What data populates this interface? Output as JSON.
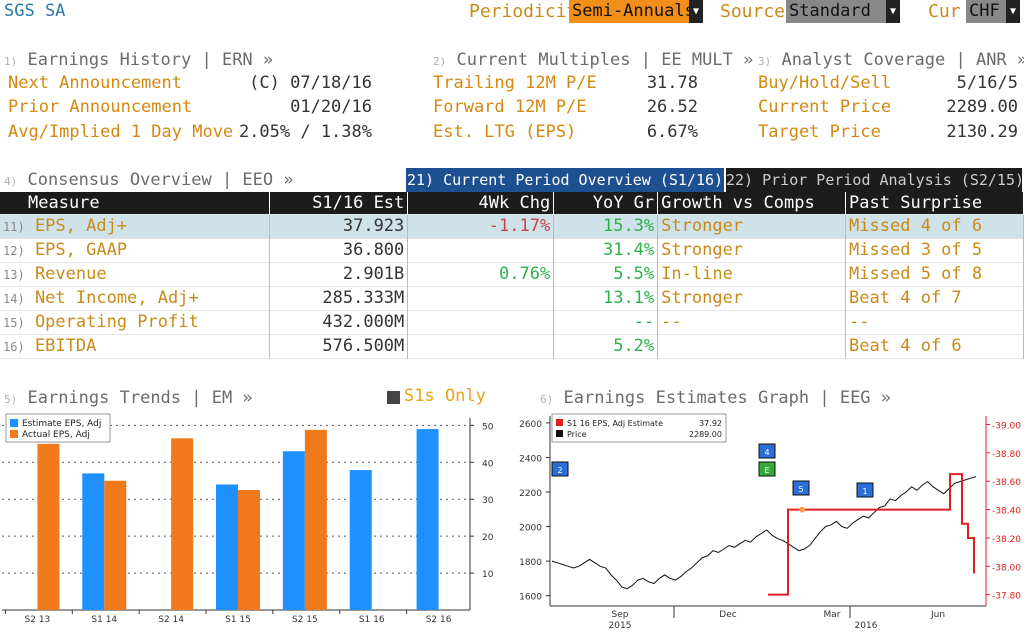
{
  "app": {
    "title": "SGS SA"
  },
  "toolbar": {
    "periodicity_label": "Periodicity",
    "periodicity_value": "Semi-Annuals",
    "source_label": "Source",
    "source_value": "Standard",
    "currency_label": "Cur",
    "currency_value": "CHF"
  },
  "sections": {
    "ern": {
      "num": "1)",
      "title": "Earnings History | ERN »",
      "rows": [
        {
          "label": "Next Announcement",
          "value": "(C)  07/18/16"
        },
        {
          "label": "Prior Announcement",
          "value": "01/20/16"
        },
        {
          "label": "Avg/Implied 1 Day Move",
          "value": "2.05% / 1.38%"
        }
      ]
    },
    "mult": {
      "num": "2)",
      "title": "Current Multiples | EE MULT »",
      "rows": [
        {
          "label": "Trailing 12M P/E",
          "value": "31.78"
        },
        {
          "label": "Forward 12M P/E",
          "value": "26.52"
        },
        {
          "label": "Est. LTG (EPS)",
          "value": "6.67%"
        }
      ]
    },
    "anr": {
      "num": "3)",
      "title": "Analyst Coverage | ANR »",
      "rows": [
        {
          "label": "Buy/Hold/Sell",
          "value": "5/16/5"
        },
        {
          "label": "Current Price",
          "value": "2289.00"
        },
        {
          "label": "Target Price",
          "value": "2130.29"
        }
      ]
    },
    "eeo": {
      "num": "4)",
      "title": "Consensus Overview | EEO »"
    },
    "em": {
      "num": "5)",
      "title": "Earnings Trends | EM »",
      "toggle": "S1s Only"
    },
    "eeg": {
      "num": "6)",
      "title": "Earnings Estimates Graph | EEG »"
    }
  },
  "tabs": {
    "current": "21) Current Period Overview (S1/16)",
    "prior": "22) Prior Period Analysis (S2/15)"
  },
  "table": {
    "headers": [
      "Measure",
      "S1/16 Est",
      "4Wk Chg",
      "YoY Gr",
      "Growth vs Comps",
      "Past Surprise"
    ],
    "rows": [
      {
        "n": "11)",
        "measure": "EPS, Adj+",
        "est": "37.923",
        "chg": "-1.17%",
        "yoy": "15.3%",
        "comps": "Stronger",
        "surprise": "Missed 4 of 6"
      },
      {
        "n": "12)",
        "measure": "EPS, GAAP",
        "est": "36.800",
        "chg": "",
        "yoy": "31.4%",
        "comps": "Stronger",
        "surprise": "Missed 3 of 5"
      },
      {
        "n": "13)",
        "measure": "Revenue",
        "est": "2.901B",
        "chg": "0.76%",
        "yoy": "5.5%",
        "comps": "In-line",
        "surprise": "Missed 5 of 8"
      },
      {
        "n": "14)",
        "measure": "Net Income, Adj+",
        "est": "285.333M",
        "chg": "",
        "yoy": "13.1%",
        "comps": "Stronger",
        "surprise": "Beat 4 of 7"
      },
      {
        "n": "15)",
        "measure": "Operating Profit",
        "est": "432.000M",
        "chg": "",
        "yoy": "--",
        "comps": "--",
        "surprise": "--"
      },
      {
        "n": "16)",
        "measure": "EBITDA",
        "est": "576.500M",
        "chg": "",
        "yoy": "5.2%",
        "comps": "",
        "surprise": "Beat 4 of 6"
      }
    ]
  },
  "chart_data": [
    {
      "type": "bar",
      "categories": [
        "S2 13",
        "S1 14",
        "S2 14",
        "S1 15",
        "S2 15",
        "S1 16",
        "S2 16"
      ],
      "series": [
        {
          "name": "Estimate EPS, Adj",
          "color": "#1e90ff",
          "values": [
            null,
            37,
            null,
            34,
            43,
            37.9,
            49
          ]
        },
        {
          "name": "Actual EPS, Adj",
          "color": "#f07a1a",
          "values": [
            45,
            35,
            46.5,
            32.5,
            48.8,
            null,
            null
          ]
        }
      ],
      "ylim": [
        0,
        52
      ],
      "yticks": [
        10,
        20,
        30,
        40,
        50
      ]
    },
    {
      "type": "line",
      "legend": [
        {
          "name": "S1 16 EPS, Adj Estimate",
          "value": "37.92",
          "color": "#e02020"
        },
        {
          "name": "Price",
          "value": "2289.00",
          "color": "#111111"
        }
      ],
      "x_labels": [
        "Sep",
        "Dec",
        "Mar",
        "Jun"
      ],
      "x_years": [
        "2015",
        "2016"
      ],
      "left_axis": {
        "ticks": [
          1600,
          1800,
          2000,
          2200,
          2400,
          2600
        ],
        "ylim": [
          1540,
          2640
        ]
      },
      "right_axis": {
        "ticks": [
          "37.80",
          "38.00",
          "38.20",
          "38.40",
          "38.60",
          "38.80",
          "39.00"
        ],
        "ylim": [
          37.72,
          39.06
        ]
      },
      "markers": [
        "2",
        "4",
        "E",
        "5",
        "1"
      ],
      "price": [
        1800,
        1790,
        1780,
        1770,
        1760,
        1770,
        1790,
        1810,
        1790,
        1770,
        1760,
        1720,
        1690,
        1650,
        1640,
        1660,
        1690,
        1700,
        1680,
        1670,
        1700,
        1720,
        1700,
        1690,
        1710,
        1740,
        1760,
        1790,
        1820,
        1830,
        1860,
        1850,
        1870,
        1890,
        1880,
        1900,
        1920,
        1910,
        1940,
        1960,
        1980,
        1950,
        1930,
        1920,
        1900,
        1880,
        1860,
        1870,
        1890,
        1930,
        1970,
        2000,
        2010,
        2030,
        2000,
        1990,
        2020,
        2040,
        2060,
        2050,
        2080,
        2110,
        2120,
        2160,
        2150,
        2180,
        2200,
        2230,
        2210,
        2240,
        2260,
        2230,
        2210,
        2190,
        2220,
        2250,
        2260,
        2270,
        2280,
        2289
      ],
      "estimate": [
        37.8,
        37.8,
        37.8,
        38.4,
        38.4,
        38.4,
        38.4,
        38.4,
        38.4,
        38.4,
        38.4,
        38.4,
        38.4,
        38.65,
        38.65,
        38.3,
        38.2,
        37.95
      ]
    }
  ]
}
